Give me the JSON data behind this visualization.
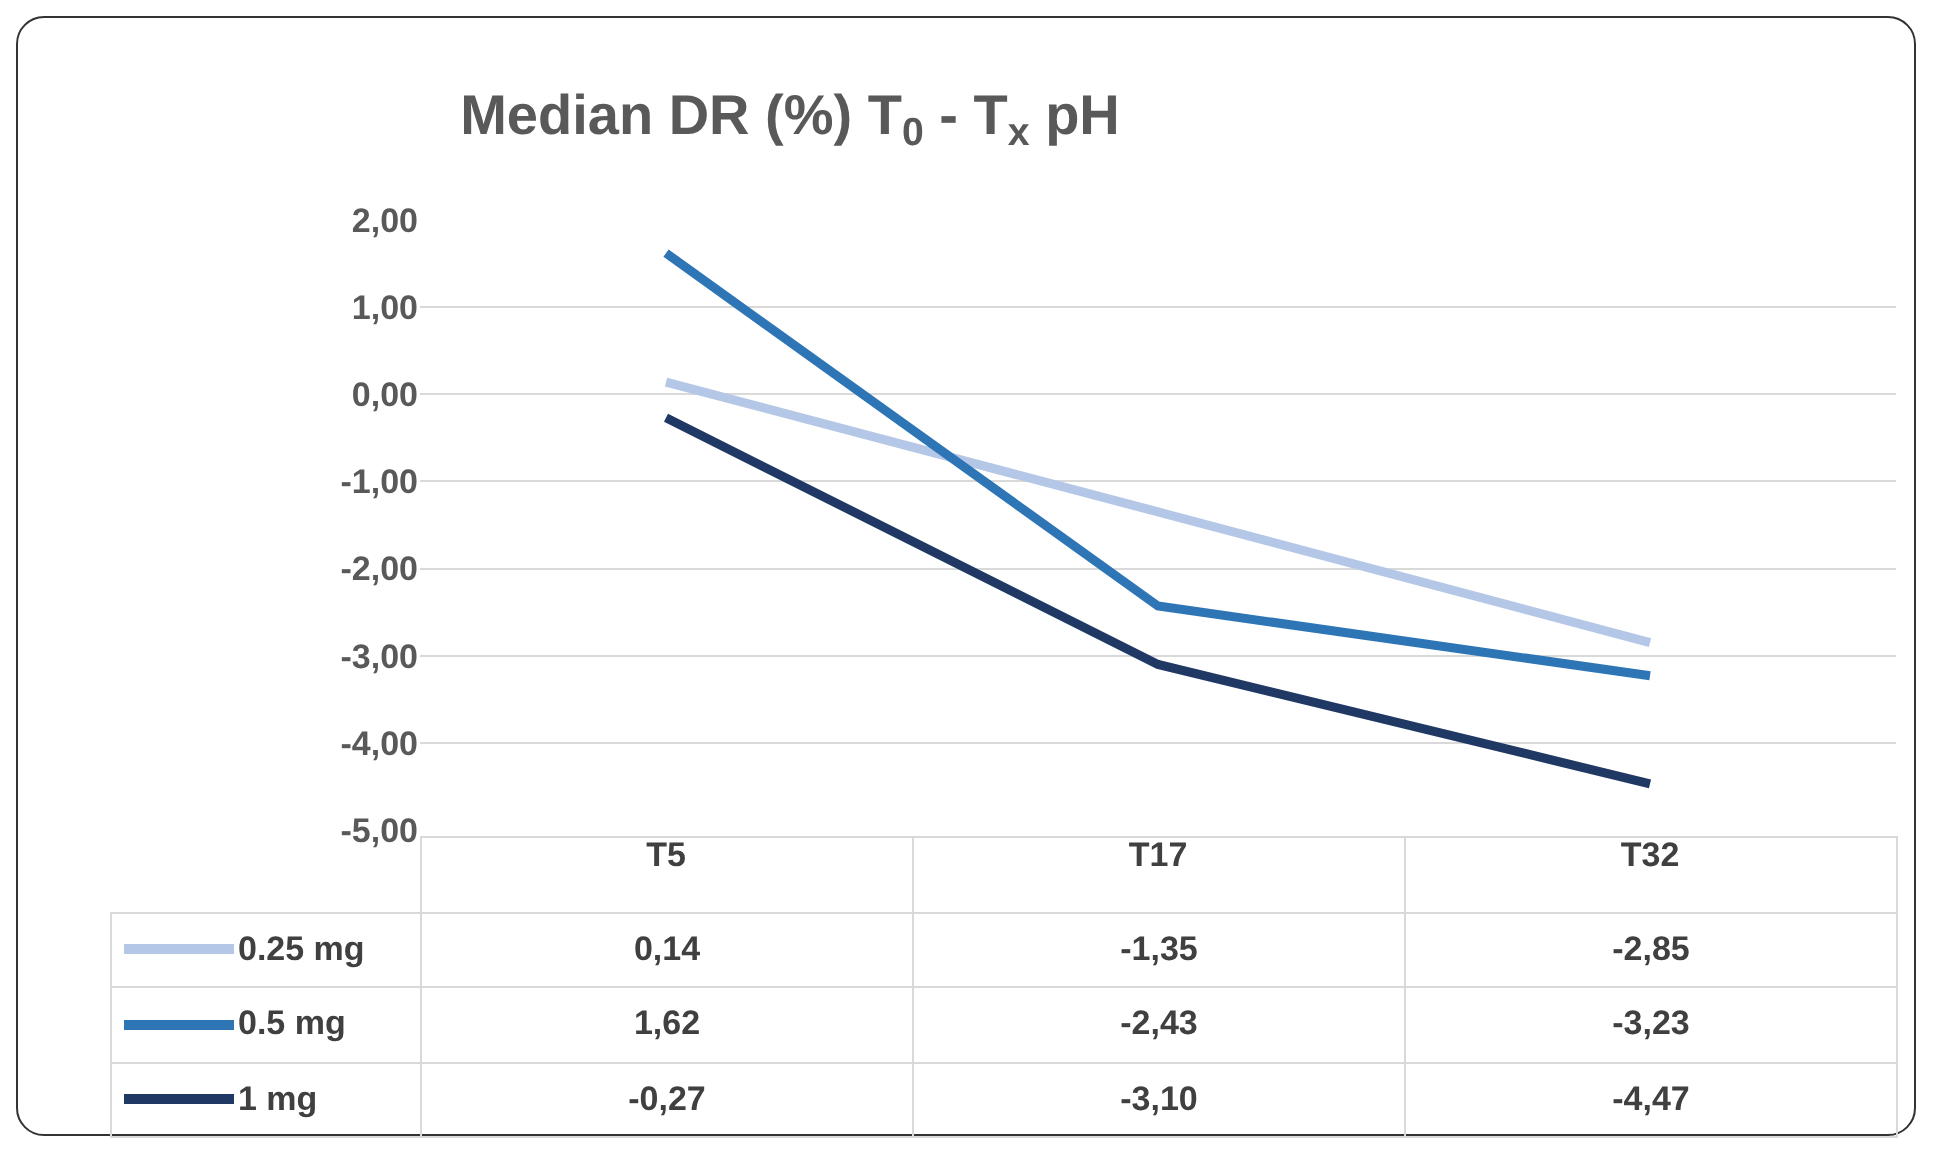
{
  "chart_data": {
    "type": "line",
    "title": "Median DR (%) T$_{0}$ - T$_{x}$ pH",
    "categories": [
      "T5",
      "T17",
      "T32"
    ],
    "series": [
      {
        "name": "0.25 mg",
        "color": "#b4c7e7",
        "values": [
          0.14,
          -1.35,
          -2.85
        ],
        "value_labels": [
          "0,14",
          "-1,35",
          "-2,85"
        ]
      },
      {
        "name": "0.5 mg",
        "color": "#2e75b6",
        "values": [
          1.62,
          -2.43,
          -3.23
        ],
        "value_labels": [
          "1,62",
          "-2,43",
          "-3,23"
        ]
      },
      {
        "name": "1 mg",
        "color": "#203864",
        "values": [
          -0.27,
          -3.1,
          -4.47
        ],
        "value_labels": [
          "-0,27",
          "-3,10",
          "-4,47"
        ]
      }
    ],
    "ylim": [
      -5,
      2
    ],
    "yticks": [
      {
        "value": -5,
        "label": "-5,00"
      },
      {
        "value": -4,
        "label": "-4,00"
      },
      {
        "value": -3,
        "label": "-3,00"
      },
      {
        "value": -2,
        "label": "-2,00"
      },
      {
        "value": -1,
        "label": "-1,00"
      },
      {
        "value": 0,
        "label": "0,00"
      },
      {
        "value": 1,
        "label": "1,00"
      },
      {
        "value": 2,
        "label": "2,00"
      }
    ],
    "grid": "y",
    "legend": "bottom"
  }
}
